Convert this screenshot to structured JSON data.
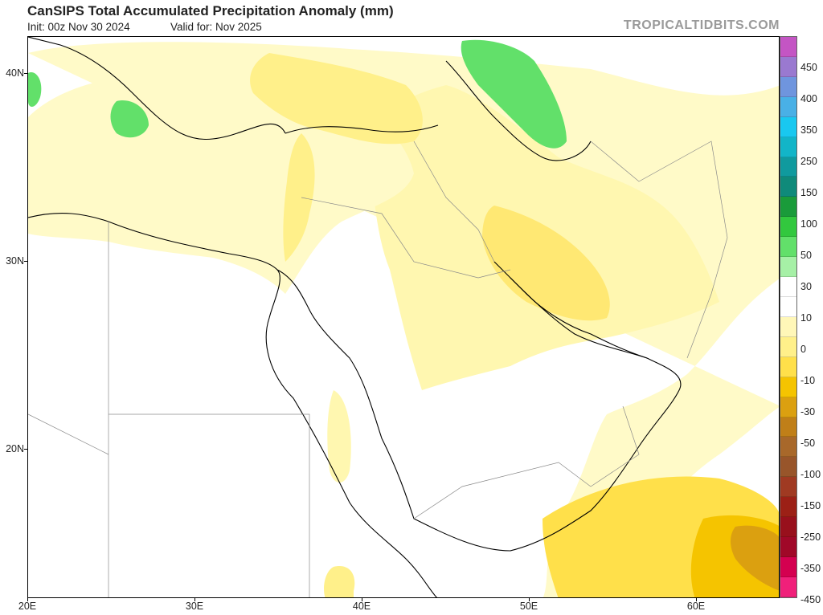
{
  "header": {
    "title": "CanSIPS Total Accumulated Precipitation Anomaly (mm)",
    "init": "Init: 00z Nov 30 2024",
    "valid": "Valid for: Nov 2025",
    "brand": "TROPICALTIDBITS.COM"
  },
  "axes": {
    "lat_labels": [
      "40N",
      "30N",
      "20N"
    ],
    "lon_labels": [
      "20E",
      "30E",
      "40E",
      "50E",
      "60E"
    ]
  },
  "colorbar": {
    "labels": [
      "450",
      "400",
      "350",
      "250",
      "150",
      "100",
      "50",
      "30",
      "10",
      "0",
      "-10",
      "-30",
      "-50",
      "-100",
      "-150",
      "-250",
      "-350",
      "-450"
    ],
    "colors": [
      "#c455c4",
      "#9a79d0",
      "#6f95de",
      "#49b0e6",
      "#19c8f0",
      "#12b5c8",
      "#109a9e",
      "#0f8a7a",
      "#1a9b3a",
      "#32c83e",
      "#62e06a",
      "#a6f0a6",
      "#ffffff",
      "#ffffff",
      "#fff7b8",
      "#fff08a",
      "#ffe04a",
      "#f5c400",
      "#dba010",
      "#c07f18",
      "#a8682a",
      "#98552a",
      "#a03a22",
      "#9c2016",
      "#98101c",
      "#a00828",
      "#d40050",
      "#f0207a"
    ]
  }
}
